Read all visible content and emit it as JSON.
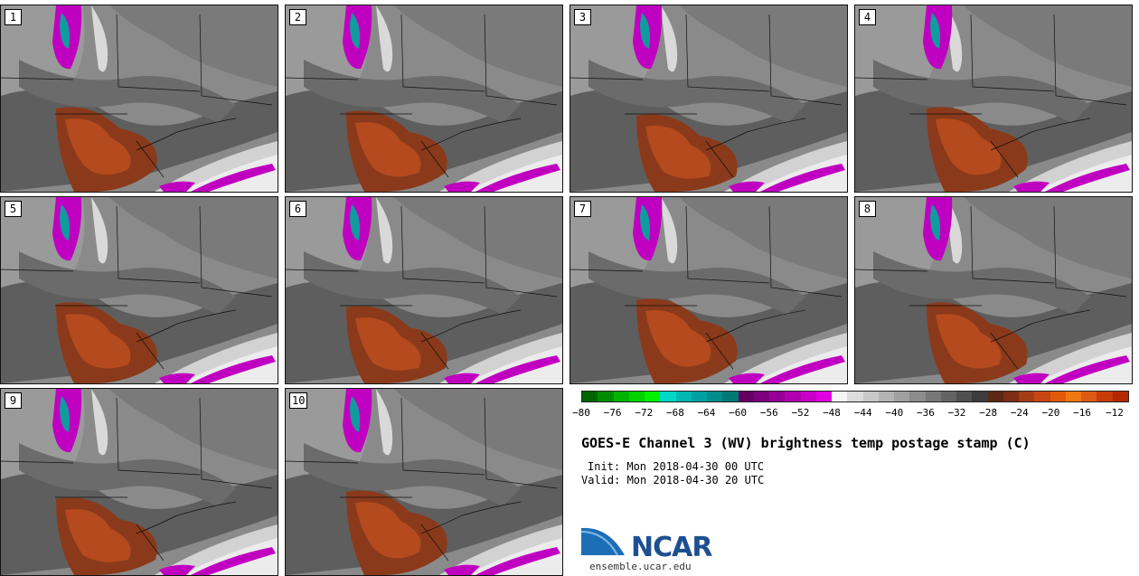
{
  "stamps": [
    {
      "label": "1"
    },
    {
      "label": "2"
    },
    {
      "label": "3"
    },
    {
      "label": "4"
    },
    {
      "label": "5"
    },
    {
      "label": "6"
    },
    {
      "label": "7"
    },
    {
      "label": "8"
    },
    {
      "label": "9"
    },
    {
      "label": "10"
    }
  ],
  "colorbar": {
    "colors": [
      "#006400",
      "#008c00",
      "#00b400",
      "#00d200",
      "#00f000",
      "#00d8c8",
      "#00b8b0",
      "#00a0a0",
      "#008c8c",
      "#007878",
      "#640064",
      "#7d007d",
      "#960096",
      "#af00af",
      "#c800c8",
      "#e100e1",
      "#f5f5f5",
      "#dcdcdc",
      "#c8c8c8",
      "#b4b4b4",
      "#a0a0a0",
      "#8c8c8c",
      "#787878",
      "#646464",
      "#505050",
      "#3c3c3c",
      "#5a2814",
      "#7d2d14",
      "#a53c14",
      "#c84614",
      "#e15a0a",
      "#f07814",
      "#dc5a14",
      "#c83c0a",
      "#b42800"
    ],
    "ticks": [
      "−80",
      "−76",
      "−72",
      "−68",
      "−64",
      "−60",
      "−56",
      "−52",
      "−48",
      "−44",
      "−40",
      "−36",
      "−32",
      "−28",
      "−24",
      "−20",
      "−16",
      "−12"
    ]
  },
  "title": "GOES-E Channel 3 (WV) brightness temp postage stamp (C)",
  "init": "Init: Mon 2018-04-30 00 UTC",
  "valid": "Valid: Mon 2018-04-30 20 UTC",
  "logo": {
    "text": "NCAR",
    "url": "ensemble.ucar.edu"
  }
}
